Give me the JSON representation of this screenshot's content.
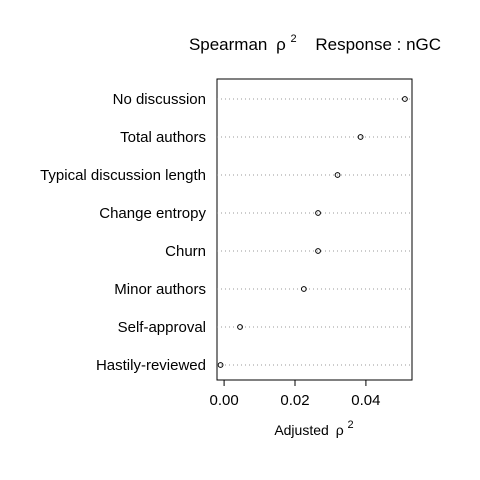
{
  "chart_data": {
    "type": "dot",
    "title_left": "Spearman",
    "title_symbol": "ρ",
    "title_sup": "2",
    "title_right": "Response : nGC",
    "xlabel": "Adjusted",
    "xlabel_symbol": "ρ",
    "xlabel_sup": "2",
    "xlim": [
      -0.002,
      0.053
    ],
    "xticks": [
      {
        "value": 0.0,
        "label": "0.00"
      },
      {
        "value": 0.02,
        "label": "0.02"
      },
      {
        "value": 0.04,
        "label": "0.04"
      }
    ],
    "grid": "dotted horizontal per category",
    "categories": [
      "No discussion",
      "Total authors",
      "Typical discussion length",
      "Change entropy",
      "Churn",
      "Minor authors",
      "Self-approval",
      "Hastily-reviewed"
    ],
    "values": [
      0.051,
      0.0385,
      0.032,
      0.0265,
      0.0265,
      0.0225,
      0.0045,
      -0.001
    ]
  }
}
